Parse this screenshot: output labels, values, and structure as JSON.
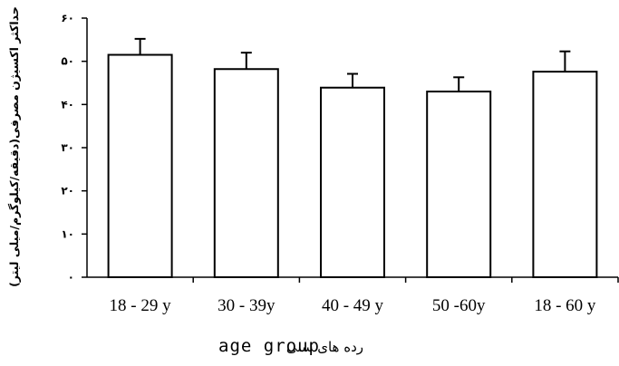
{
  "chart_data": {
    "type": "bar",
    "categories": [
      "18 - 29 y",
      "30 - 39y",
      "40 - 49 y",
      "50 -60y",
      "18 - 60 y"
    ],
    "values": [
      51.5,
      48.2,
      43.9,
      43.0,
      47.6
    ],
    "error": [
      3.7,
      3.8,
      3.2,
      3.3,
      4.7
    ],
    "ylim": [
      0,
      60
    ],
    "yticks": [
      0,
      10,
      20,
      30,
      40,
      50,
      60
    ],
    "ytick_labels": [
      "۰",
      "۱۰",
      "۲۰",
      "۳۰",
      "۴۰",
      "۵۰",
      "۶۰"
    ],
    "ylabel": "(دقیقه/کیلوگرم/میلی لیتر)حداکثر اکسیژن مصرفی",
    "xlabel_fa": "رده های سنی",
    "xlabel_en": "age group",
    "grid": false,
    "bar_fill": "#ffffff",
    "bar_stroke": "#000000"
  }
}
